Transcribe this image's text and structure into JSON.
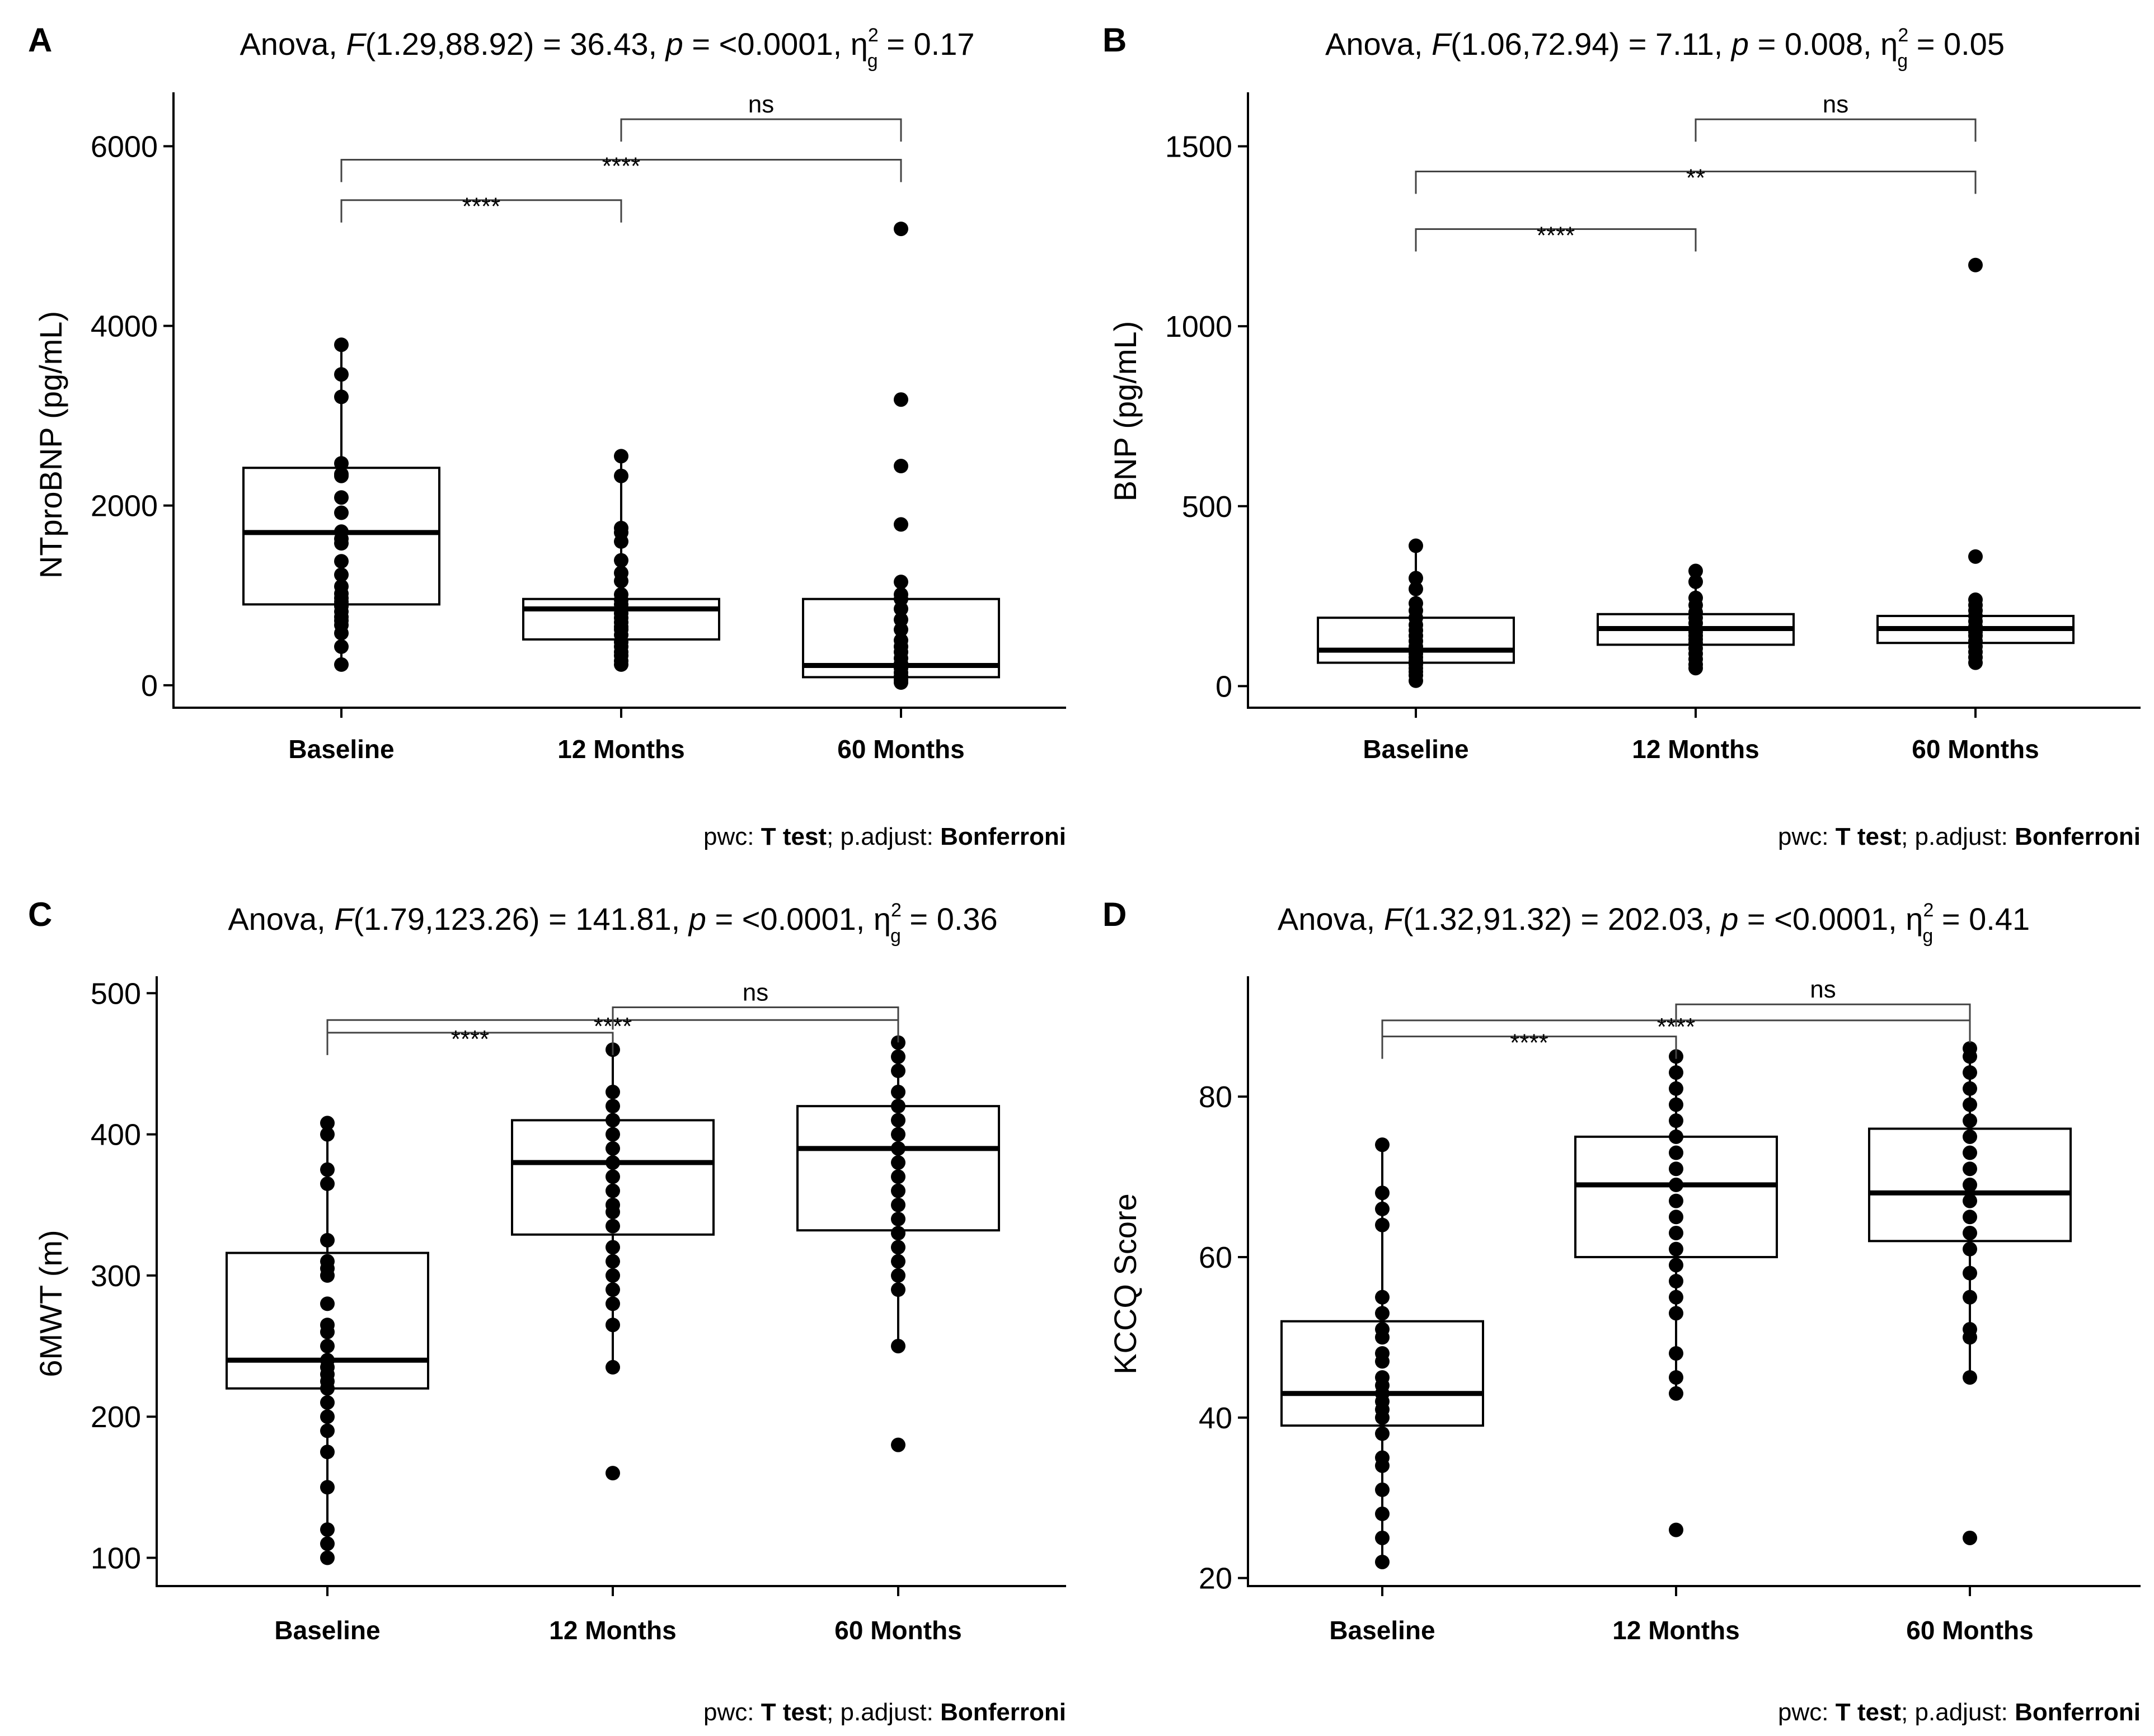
{
  "caption": {
    "prefix": "pwc: ",
    "test": "T test",
    "middle": "; p.adjust: ",
    "adjust": "Bonferroni"
  },
  "chart_data": [
    {
      "panel": "A",
      "type": "box",
      "title": {
        "pre": "Anova, ",
        "F": "F",
        "dfs": "(1.29,88.92) = 36.43, ",
        "p": "p",
        "pval": " = <0.0001, ",
        "eta": "η",
        "eta_sub": "g",
        "eta_sup": "2",
        "eta_val": " = 0.17"
      },
      "ylabel": "NTproBNP (pg/mL)",
      "ylim": [
        -250,
        6600
      ],
      "yticks": [
        0,
        2000,
        4000,
        6000
      ],
      "categories": [
        "Baseline",
        "12 Months",
        "60 Months"
      ],
      "boxes": [
        {
          "min": 230,
          "q1": 900,
          "median": 1700,
          "q3": 2420,
          "max": 3790
        },
        {
          "min": 230,
          "q1": 510,
          "median": 850,
          "q3": 960,
          "max": 2550
        },
        {
          "min": 30,
          "q1": 90,
          "median": 220,
          "q3": 960,
          "max": 1150
        }
      ],
      "points": [
        [
          3790,
          3460,
          3210,
          2470,
          2350,
          2330,
          2090,
          1920,
          1710,
          1630,
          1580,
          1380,
          1230,
          1100,
          1020,
          970,
          930,
          900,
          880,
          820,
          760,
          720,
          670,
          580,
          430,
          230
        ],
        [
          2550,
          2330,
          1750,
          1700,
          1600,
          1390,
          1250,
          1160,
          1010,
          950,
          900,
          850,
          800,
          750,
          700,
          650,
          620,
          560,
          480,
          430,
          370,
          330,
          270,
          230
        ],
        [
          5080,
          3180,
          2440,
          1790,
          1150,
          1010,
          960,
          850,
          730,
          620,
          500,
          430,
          370,
          300,
          240,
          190,
          140,
          100,
          60,
          30
        ]
      ],
      "brackets": [
        {
          "from": 0,
          "to": 1,
          "y": 5400,
          "label": "****"
        },
        {
          "from": 0,
          "to": 2,
          "y": 5850,
          "label": "****"
        },
        {
          "from": 1,
          "to": 2,
          "y": 6300,
          "label": "ns"
        }
      ]
    },
    {
      "panel": "B",
      "type": "box",
      "title": {
        "pre": "Anova, ",
        "F": "F",
        "dfs": "(1.06,72.94) = 7.11, ",
        "p": "p",
        "pval": " = 0.008, ",
        "eta": "η",
        "eta_sub": "g",
        "eta_sup": "2",
        "eta_val": " = 0.05"
      },
      "ylabel": "BNP (pg/mL)",
      "ylim": [
        -60,
        1650
      ],
      "yticks": [
        0,
        500,
        1000,
        1500
      ],
      "categories": [
        "Baseline",
        "12 Months",
        "60 Months"
      ],
      "boxes": [
        {
          "min": 15,
          "q1": 65,
          "median": 100,
          "q3": 190,
          "max": 390
        },
        {
          "min": 50,
          "q1": 115,
          "median": 160,
          "q3": 200,
          "max": 320
        },
        {
          "min": 65,
          "q1": 120,
          "median": 160,
          "q3": 195,
          "max": 240
        }
      ],
      "points": [
        [
          390,
          300,
          270,
          230,
          210,
          190,
          170,
          155,
          140,
          125,
          110,
          100,
          90,
          80,
          70,
          60,
          50,
          40,
          30,
          15
        ],
        [
          320,
          290,
          245,
          225,
          205,
          190,
          175,
          160,
          150,
          140,
          130,
          120,
          105,
          90,
          75,
          60,
          50
        ],
        [
          1170,
          360,
          240,
          225,
          210,
          195,
          180,
          165,
          150,
          140,
          125,
          110,
          95,
          80,
          65
        ]
      ],
      "brackets": [
        {
          "from": 0,
          "to": 1,
          "y": 1270,
          "label": "****"
        },
        {
          "from": 0,
          "to": 2,
          "y": 1430,
          "label": "**"
        },
        {
          "from": 1,
          "to": 2,
          "y": 1575,
          "label": "ns"
        }
      ]
    },
    {
      "panel": "C",
      "type": "box",
      "title": {
        "pre": "Anova, ",
        "F": "F",
        "dfs": "(1.79,123.26) = 141.81, ",
        "p": "p",
        "pval": " = <0.0001, ",
        "eta": "η",
        "eta_sub": "g",
        "eta_sup": "2",
        "eta_val": " = 0.36"
      },
      "ylabel": "6MWT (m)",
      "ylim": [
        80,
        512
      ],
      "yticks": [
        100,
        200,
        300,
        400,
        500
      ],
      "categories": [
        "Baseline",
        "12 Months",
        "60 Months"
      ],
      "boxes": [
        {
          "min": 100,
          "q1": 220,
          "median": 240,
          "q3": 316,
          "max": 410
        },
        {
          "min": 235,
          "q1": 329,
          "median": 380,
          "q3": 410,
          "max": 460
        },
        {
          "min": 250,
          "q1": 332,
          "median": 390,
          "q3": 420,
          "max": 465
        }
      ],
      "points": [
        [
          408,
          400,
          375,
          365,
          325,
          310,
          305,
          300,
          280,
          265,
          260,
          250,
          240,
          235,
          230,
          225,
          220,
          210,
          200,
          190,
          175,
          150,
          120,
          110,
          100
        ],
        [
          460,
          430,
          420,
          410,
          400,
          390,
          380,
          370,
          360,
          350,
          345,
          335,
          320,
          310,
          300,
          290,
          280,
          265,
          235,
          160
        ],
        [
          465,
          455,
          445,
          430,
          420,
          410,
          400,
          390,
          380,
          370,
          360,
          350,
          340,
          330,
          320,
          310,
          300,
          290,
          250,
          180
        ]
      ],
      "brackets": [
        {
          "from": 0,
          "to": 1,
          "y": 472,
          "label": "****"
        },
        {
          "from": 0,
          "to": 2,
          "y": 481,
          "label": "****"
        },
        {
          "from": 1,
          "to": 2,
          "y": 490,
          "label": "ns"
        }
      ]
    },
    {
      "panel": "D",
      "type": "box",
      "title": {
        "pre": "Anova, ",
        "F": "F",
        "dfs": "(1.32,91.32) = 202.03, ",
        "p": "p",
        "pval": " = <0.0001, ",
        "eta": "η",
        "eta_sub": "g",
        "eta_sup": "2",
        "eta_val": " = 0.41"
      },
      "ylabel": "KCCQ Score",
      "ylim": [
        19,
        95
      ],
      "yticks": [
        20,
        40,
        60,
        80
      ],
      "categories": [
        "Baseline",
        "12 Months",
        "60 Months"
      ],
      "boxes": [
        {
          "min": 22,
          "q1": 39,
          "median": 43,
          "q3": 52,
          "max": 74
        },
        {
          "min": 43,
          "q1": 60,
          "median": 69,
          "q3": 75,
          "max": 85
        },
        {
          "min": 45,
          "q1": 62,
          "median": 68,
          "q3": 76,
          "max": 86
        }
      ],
      "points": [
        [
          74,
          68,
          66,
          64,
          55,
          53,
          51,
          50,
          48,
          47,
          45,
          44,
          43,
          42,
          41,
          40,
          38,
          35,
          34,
          31,
          28,
          25,
          22
        ],
        [
          85,
          83,
          81,
          79,
          77,
          75,
          73,
          71,
          69,
          67,
          65,
          63,
          61,
          59,
          57,
          55,
          53,
          48,
          45,
          43,
          26
        ],
        [
          86,
          85,
          83,
          81,
          79,
          77,
          75,
          73,
          71,
          69,
          67,
          65,
          63,
          61,
          58,
          55,
          51,
          50,
          45,
          25
        ]
      ],
      "brackets": [
        {
          "from": 0,
          "to": 1,
          "y": 87.5,
          "label": "****"
        },
        {
          "from": 0,
          "to": 2,
          "y": 89.5,
          "label": "****"
        },
        {
          "from": 1,
          "to": 2,
          "y": 91.5,
          "label": "ns"
        }
      ]
    }
  ]
}
